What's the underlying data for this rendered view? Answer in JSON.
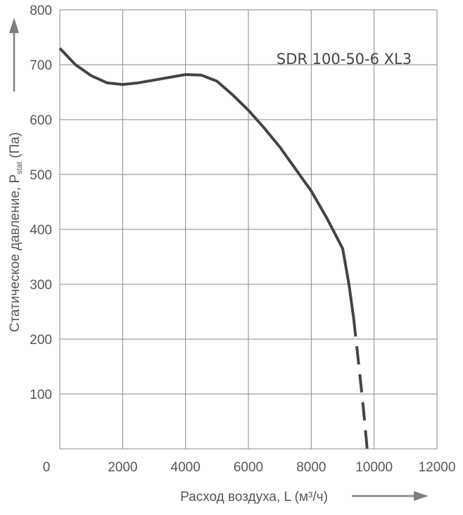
{
  "chart_data": {
    "type": "line",
    "model_label": "SDR 100-50-6 XL3",
    "xlabel": "Расход воздуха, L (м³/ч)",
    "ylabel": {
      "prefix": "Статическое давление, P",
      "subscript": "stat",
      "suffix": " (Па)"
    },
    "xlim": [
      0,
      12000
    ],
    "ylim": [
      0,
      800
    ],
    "x_ticks": [
      "0",
      "2000",
      "4000",
      "6000",
      "8000",
      "10000",
      "12000"
    ],
    "y_ticks": [
      "100",
      "200",
      "300",
      "400",
      "500",
      "600",
      "700",
      "800"
    ],
    "grid": true,
    "series": [
      {
        "style": "solid",
        "x": [
          0,
          500,
          1000,
          1500,
          2000,
          2500,
          3000,
          3500,
          4000,
          4500,
          5000,
          5500,
          6000,
          6500,
          7000,
          7500,
          8000,
          8500,
          9000,
          9200,
          9350
        ],
        "y": [
          730,
          700,
          680,
          667,
          664,
          667,
          672,
          677,
          682,
          681,
          670,
          645,
          617,
          585,
          550,
          510,
          470,
          420,
          365,
          300,
          238
        ]
      },
      {
        "style": "dashed",
        "x": [
          9350,
          9500,
          9650,
          9780
        ],
        "y": [
          238,
          160,
          80,
          0
        ]
      }
    ],
    "colors": {
      "curve": "#444444",
      "grid": "#8a8a8a",
      "text": "#555555",
      "arrow": "#7f7f7f"
    }
  }
}
